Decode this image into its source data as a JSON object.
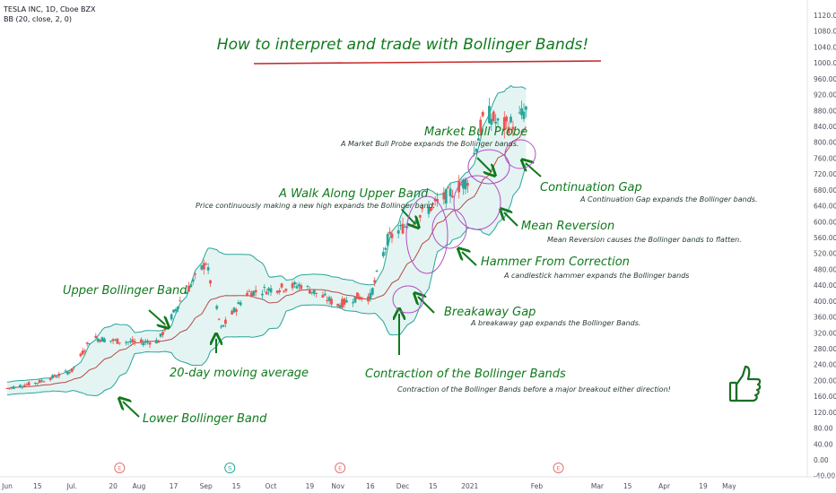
{
  "header": {
    "symbol_line": "TESLA INC, 1D, Cboe BZX",
    "indicator_line": "BB (20, close, 2, 0)"
  },
  "title": "How to interpret and trade with Bollinger Bands!",
  "colors": {
    "up": "#26a69a",
    "down": "#ef5350",
    "band": "#26a69a",
    "band_fill": "#e4f4f2",
    "basis": "#b74a4a",
    "annotation": "#0f7a1c",
    "circle": "#b04fc4",
    "title_underline": "#c62828"
  },
  "annotations": [
    {
      "title": "Market Bull Probe",
      "desc": "A Market Bull Probe expands the Bollinger bands."
    },
    {
      "title": "Continuation Gap",
      "desc": "A Continuation Gap expands the Bollinger bands."
    },
    {
      "title": "A Walk Along Upper Band",
      "desc": "Price continuously making a new high expands the Bollinger band."
    },
    {
      "title": "Mean Reversion",
      "desc": "Mean Reversion causes the Bollinger bands to flatten."
    },
    {
      "title": "Hammer From Correction",
      "desc": "A candlestick hammer expands the Bollinger bands"
    },
    {
      "title": "Upper Bollinger Band",
      "desc": ""
    },
    {
      "title": "Breakaway Gap",
      "desc": "A breakaway gap expands the Bollinger Bands."
    },
    {
      "title": "20-day moving average",
      "desc": ""
    },
    {
      "title": "Contraction of the Bollinger Bands",
      "desc": "Contraction of the Bollinger Bands before a major breakout either direction!"
    },
    {
      "title": "Lower Bollinger Band",
      "desc": ""
    }
  ],
  "events": [
    {
      "label": "E",
      "color": "#e57373"
    },
    {
      "label": "S",
      "color": "#26a69a"
    },
    {
      "label": "E",
      "color": "#e57373"
    },
    {
      "label": "E",
      "color": "#e57373"
    }
  ],
  "chart_data": {
    "type": "candlestick",
    "symbol": "TESLA INC",
    "interval": "1D",
    "indicator": "BB (20, close, 2, 0)",
    "y_axis": {
      "side": "right",
      "range": [
        -40,
        1140
      ],
      "ticks": [
        "-40.00",
        "0.00",
        "40.00",
        "80.00",
        "120.00",
        "160.00",
        "200.00",
        "240.00",
        "280.00",
        "320.00",
        "360.00",
        "400.00",
        "440.00",
        "480.00",
        "520.00",
        "560.00",
        "600.00",
        "640.00",
        "680.00",
        "720.00",
        "760.00",
        "800.00",
        "840.00",
        "880.00",
        "920.00",
        "960.00",
        "1000.00",
        "1040.00",
        "1080.00",
        "1120.00"
      ]
    },
    "x_axis": {
      "ticks": [
        "Jun",
        "15",
        "Jul.",
        "20",
        "Aug",
        "17",
        "Sep",
        "15",
        "Oct",
        "19",
        "Nov",
        "16",
        "Dec",
        "15",
        "2021",
        "Feb",
        "Mar",
        "15",
        "Apr",
        "19",
        "May"
      ]
    },
    "price_anchors": [
      {
        "date": "Jun 1",
        "close": 180
      },
      {
        "date": "Jun 15",
        "close": 195
      },
      {
        "date": "Jul 1",
        "close": 225
      },
      {
        "date": "Jul 10",
        "close": 308
      },
      {
        "date": "Jul 20",
        "close": 300
      },
      {
        "date": "Aug 1",
        "close": 295
      },
      {
        "date": "Aug 10",
        "close": 300
      },
      {
        "date": "Aug 20",
        "close": 400
      },
      {
        "date": "Sep 1",
        "close": 498
      },
      {
        "date": "Sep 8",
        "close": 330
      },
      {
        "date": "Sep 20",
        "close": 420
      },
      {
        "date": "Oct 1",
        "close": 430
      },
      {
        "date": "Oct 15",
        "close": 440
      },
      {
        "date": "Nov 1",
        "close": 390
      },
      {
        "date": "Nov 10",
        "close": 410
      },
      {
        "date": "Nov 16",
        "close": 410
      },
      {
        "date": "Nov 24",
        "close": 555
      },
      {
        "date": "Dec 1",
        "close": 585
      },
      {
        "date": "Dec 10",
        "close": 620
      },
      {
        "date": "Dec 20",
        "close": 660
      },
      {
        "date": "Dec 31",
        "close": 705
      },
      {
        "date": "Jan 8",
        "close": 880
      },
      {
        "date": "Jan 15",
        "close": 840
      },
      {
        "date": "Jan 22",
        "close": 850
      },
      {
        "date": "Jan 27",
        "close": 880
      }
    ],
    "legend": "none",
    "grid": false
  }
}
